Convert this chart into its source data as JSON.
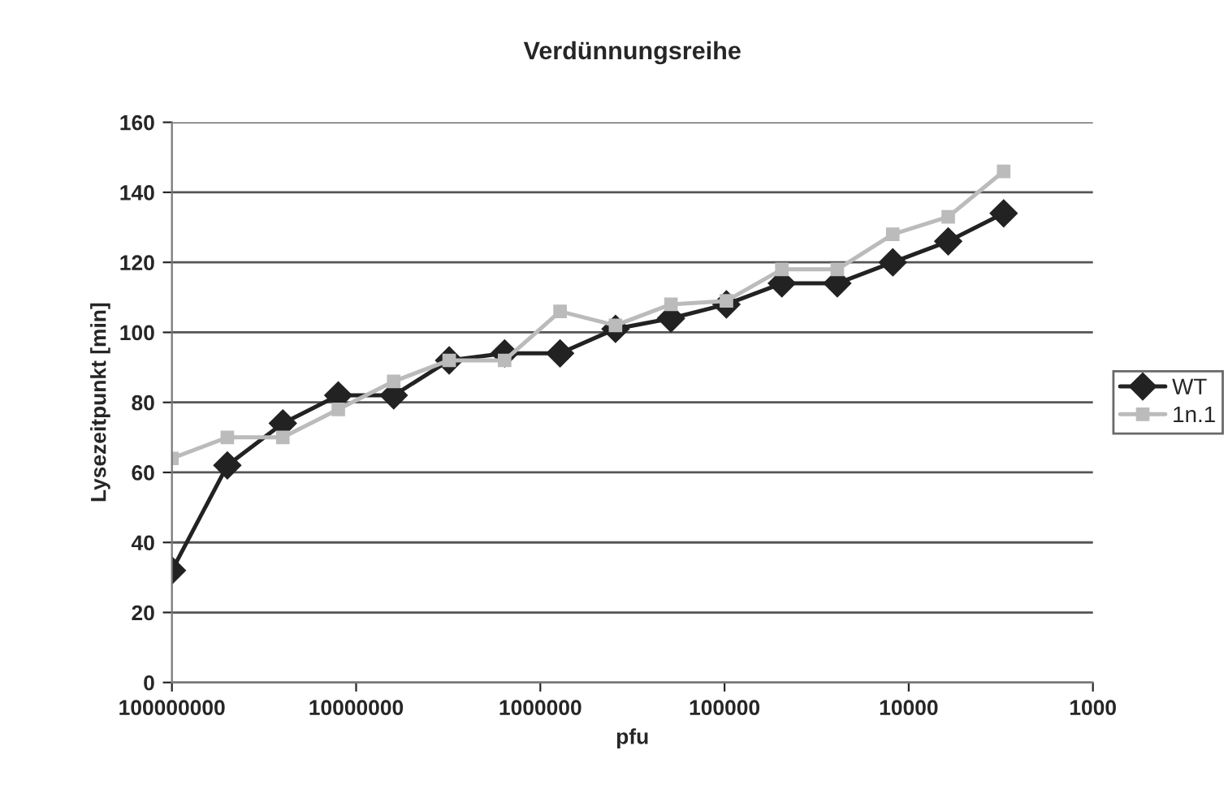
{
  "chart_data": {
    "type": "line",
    "title": "Verdünnungsreihe",
    "xlabel": "pfu",
    "ylabel": "Lysezeitpunkt [min]",
    "x": [
      100000000,
      50000000,
      25000000,
      12500000,
      6250000,
      3125000,
      1562500,
      781250,
      390625,
      195312.5,
      97656.25,
      48828.125,
      24414.0625,
      12207.03,
      6103.52,
      3051.76
    ],
    "series": [
      {
        "name": "WT",
        "color": "#222222",
        "marker": "diamond",
        "values": [
          32,
          62,
          74,
          82,
          82,
          92,
          94,
          94,
          101,
          104,
          108,
          114,
          114,
          120,
          126,
          134
        ]
      },
      {
        "name": "1n.1",
        "color": "#bbbbbb",
        "marker": "square",
        "values": [
          64,
          70,
          70,
          78,
          86,
          92,
          92,
          106,
          102,
          108,
          109,
          118,
          118,
          128,
          133,
          146
        ]
      }
    ],
    "log": "x",
    "xlim": [
      100000000,
      1000
    ],
    "xticks": [
      100000000,
      10000000,
      1000000,
      100000,
      10000,
      1000
    ],
    "ylim": [
      0,
      160
    ],
    "yticks": [
      0,
      20,
      40,
      60,
      80,
      100,
      120,
      140,
      160
    ],
    "grid": "y",
    "legend": "right",
    "line_style": "solid"
  }
}
